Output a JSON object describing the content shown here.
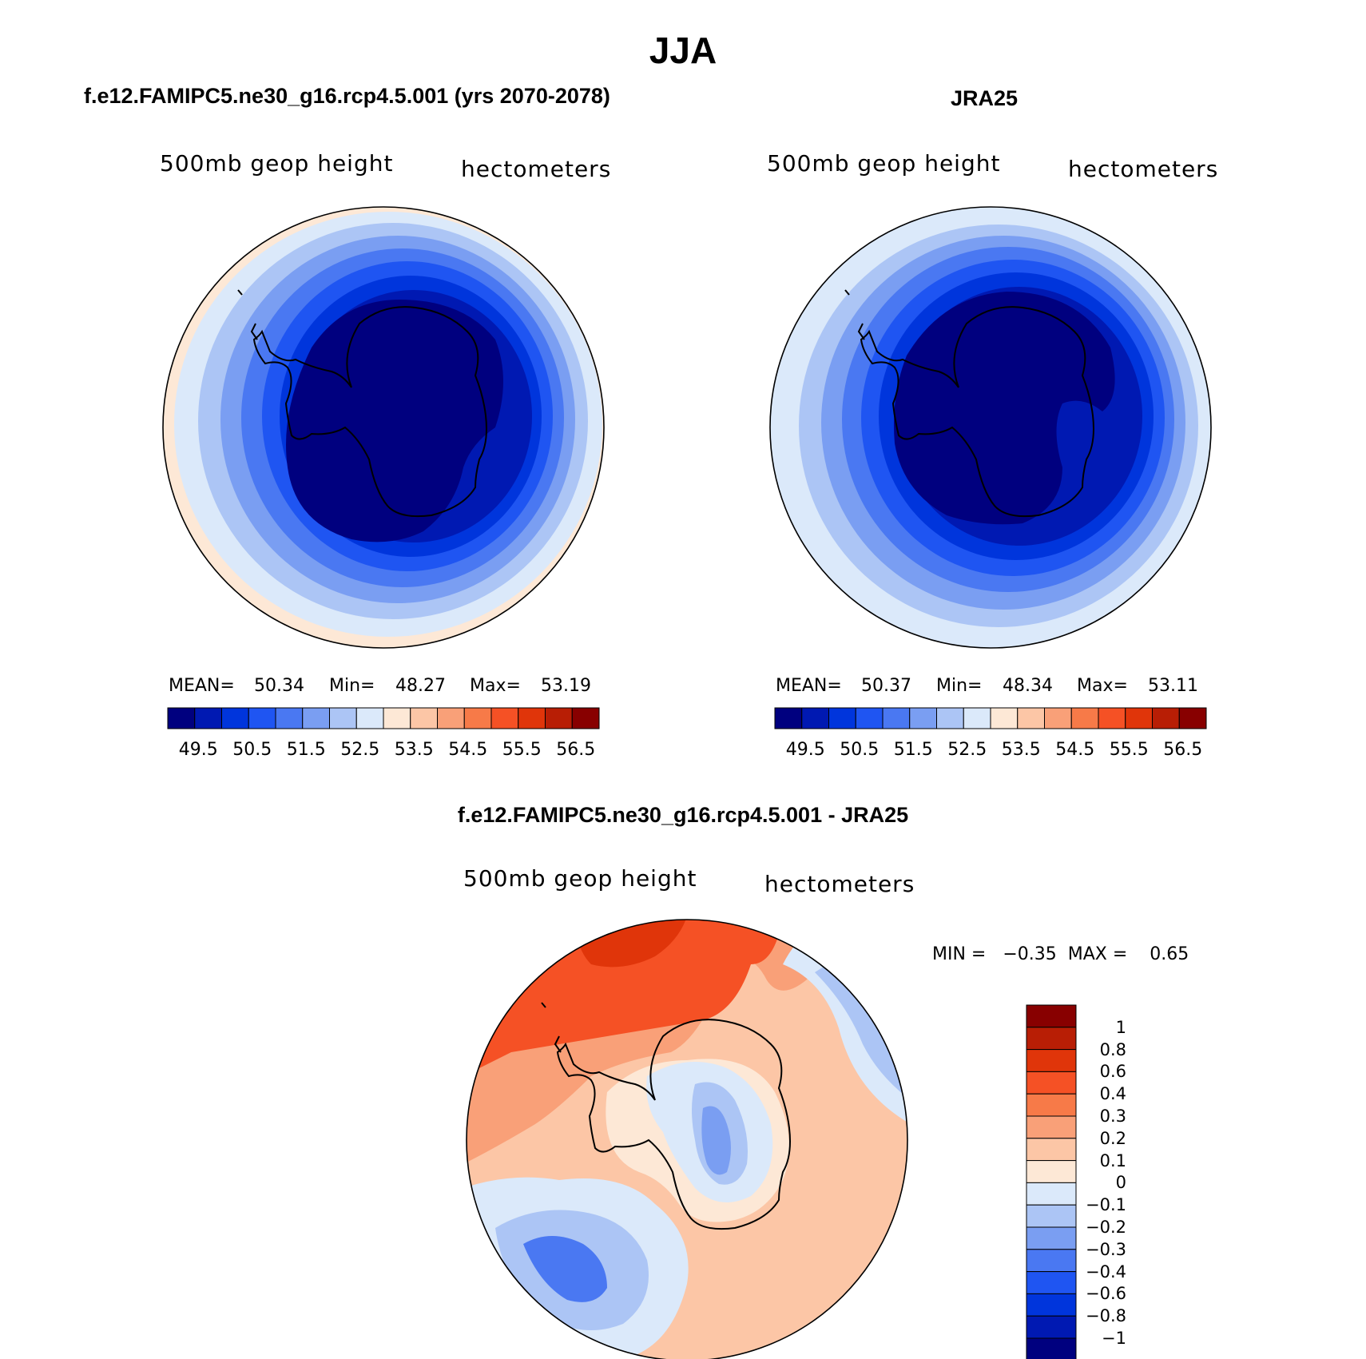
{
  "figure": {
    "season": "JJA"
  },
  "panels": {
    "model": {
      "title": "f.e12.FAMIPC5.ne30_g16.rcp4.5.001 (yrs 2070-2078)",
      "variable": "500mb  geop  height",
      "units": "hectometers",
      "stats": {
        "mean_label": "MEAN=",
        "mean": "50.34",
        "min_label": "Min=",
        "min": "48.27",
        "max_label": "Max=",
        "max": "53.19"
      }
    },
    "obs": {
      "title": "JRA25",
      "variable": "500mb  geop  height",
      "units": "hectometers",
      "stats": {
        "mean_label": "MEAN=",
        "mean": "50.37",
        "min_label": "Min=",
        "min": "48.34",
        "max_label": "Max=",
        "max": "53.11"
      }
    },
    "diff": {
      "title": "f.e12.FAMIPC5.ne30_g16.rcp4.5.001 - JRA25",
      "variable": "500mb  geop  height",
      "units": "hectometers",
      "minmax": "MIN =   −0.35  MAX =    0.65"
    }
  },
  "colorbar_abs": {
    "levels": [
      "49.5",
      "50.5",
      "51.5",
      "52.5",
      "53.5",
      "54.5",
      "55.5",
      "56.5"
    ],
    "colors": [
      "#00007f",
      "#0019b2",
      "#0035dc",
      "#1f55f2",
      "#4a78f2",
      "#7a9ef2",
      "#acc5f5",
      "#dbe9fa",
      "#fde8d6",
      "#fcc6a6",
      "#f9a078",
      "#f77a48",
      "#f55125",
      "#e0350a",
      "#b81e05",
      "#880000"
    ]
  },
  "colorbar_diff": {
    "levels": [
      "1",
      "0.8",
      "0.6",
      "0.4",
      "0.3",
      "0.2",
      "0.1",
      "0",
      "−0.1",
      "−0.2",
      "−0.3",
      "−0.4",
      "−0.6",
      "−0.8",
      "−1"
    ],
    "colors": [
      "#880000",
      "#b81e05",
      "#e0350a",
      "#f55125",
      "#f77a48",
      "#f9a078",
      "#fcc6a6",
      "#fde8d6",
      "#dbe9fa",
      "#acc5f5",
      "#7a9ef2",
      "#4a78f2",
      "#1f55f2",
      "#0035dc",
      "#0019b2",
      "#00007f"
    ]
  }
}
